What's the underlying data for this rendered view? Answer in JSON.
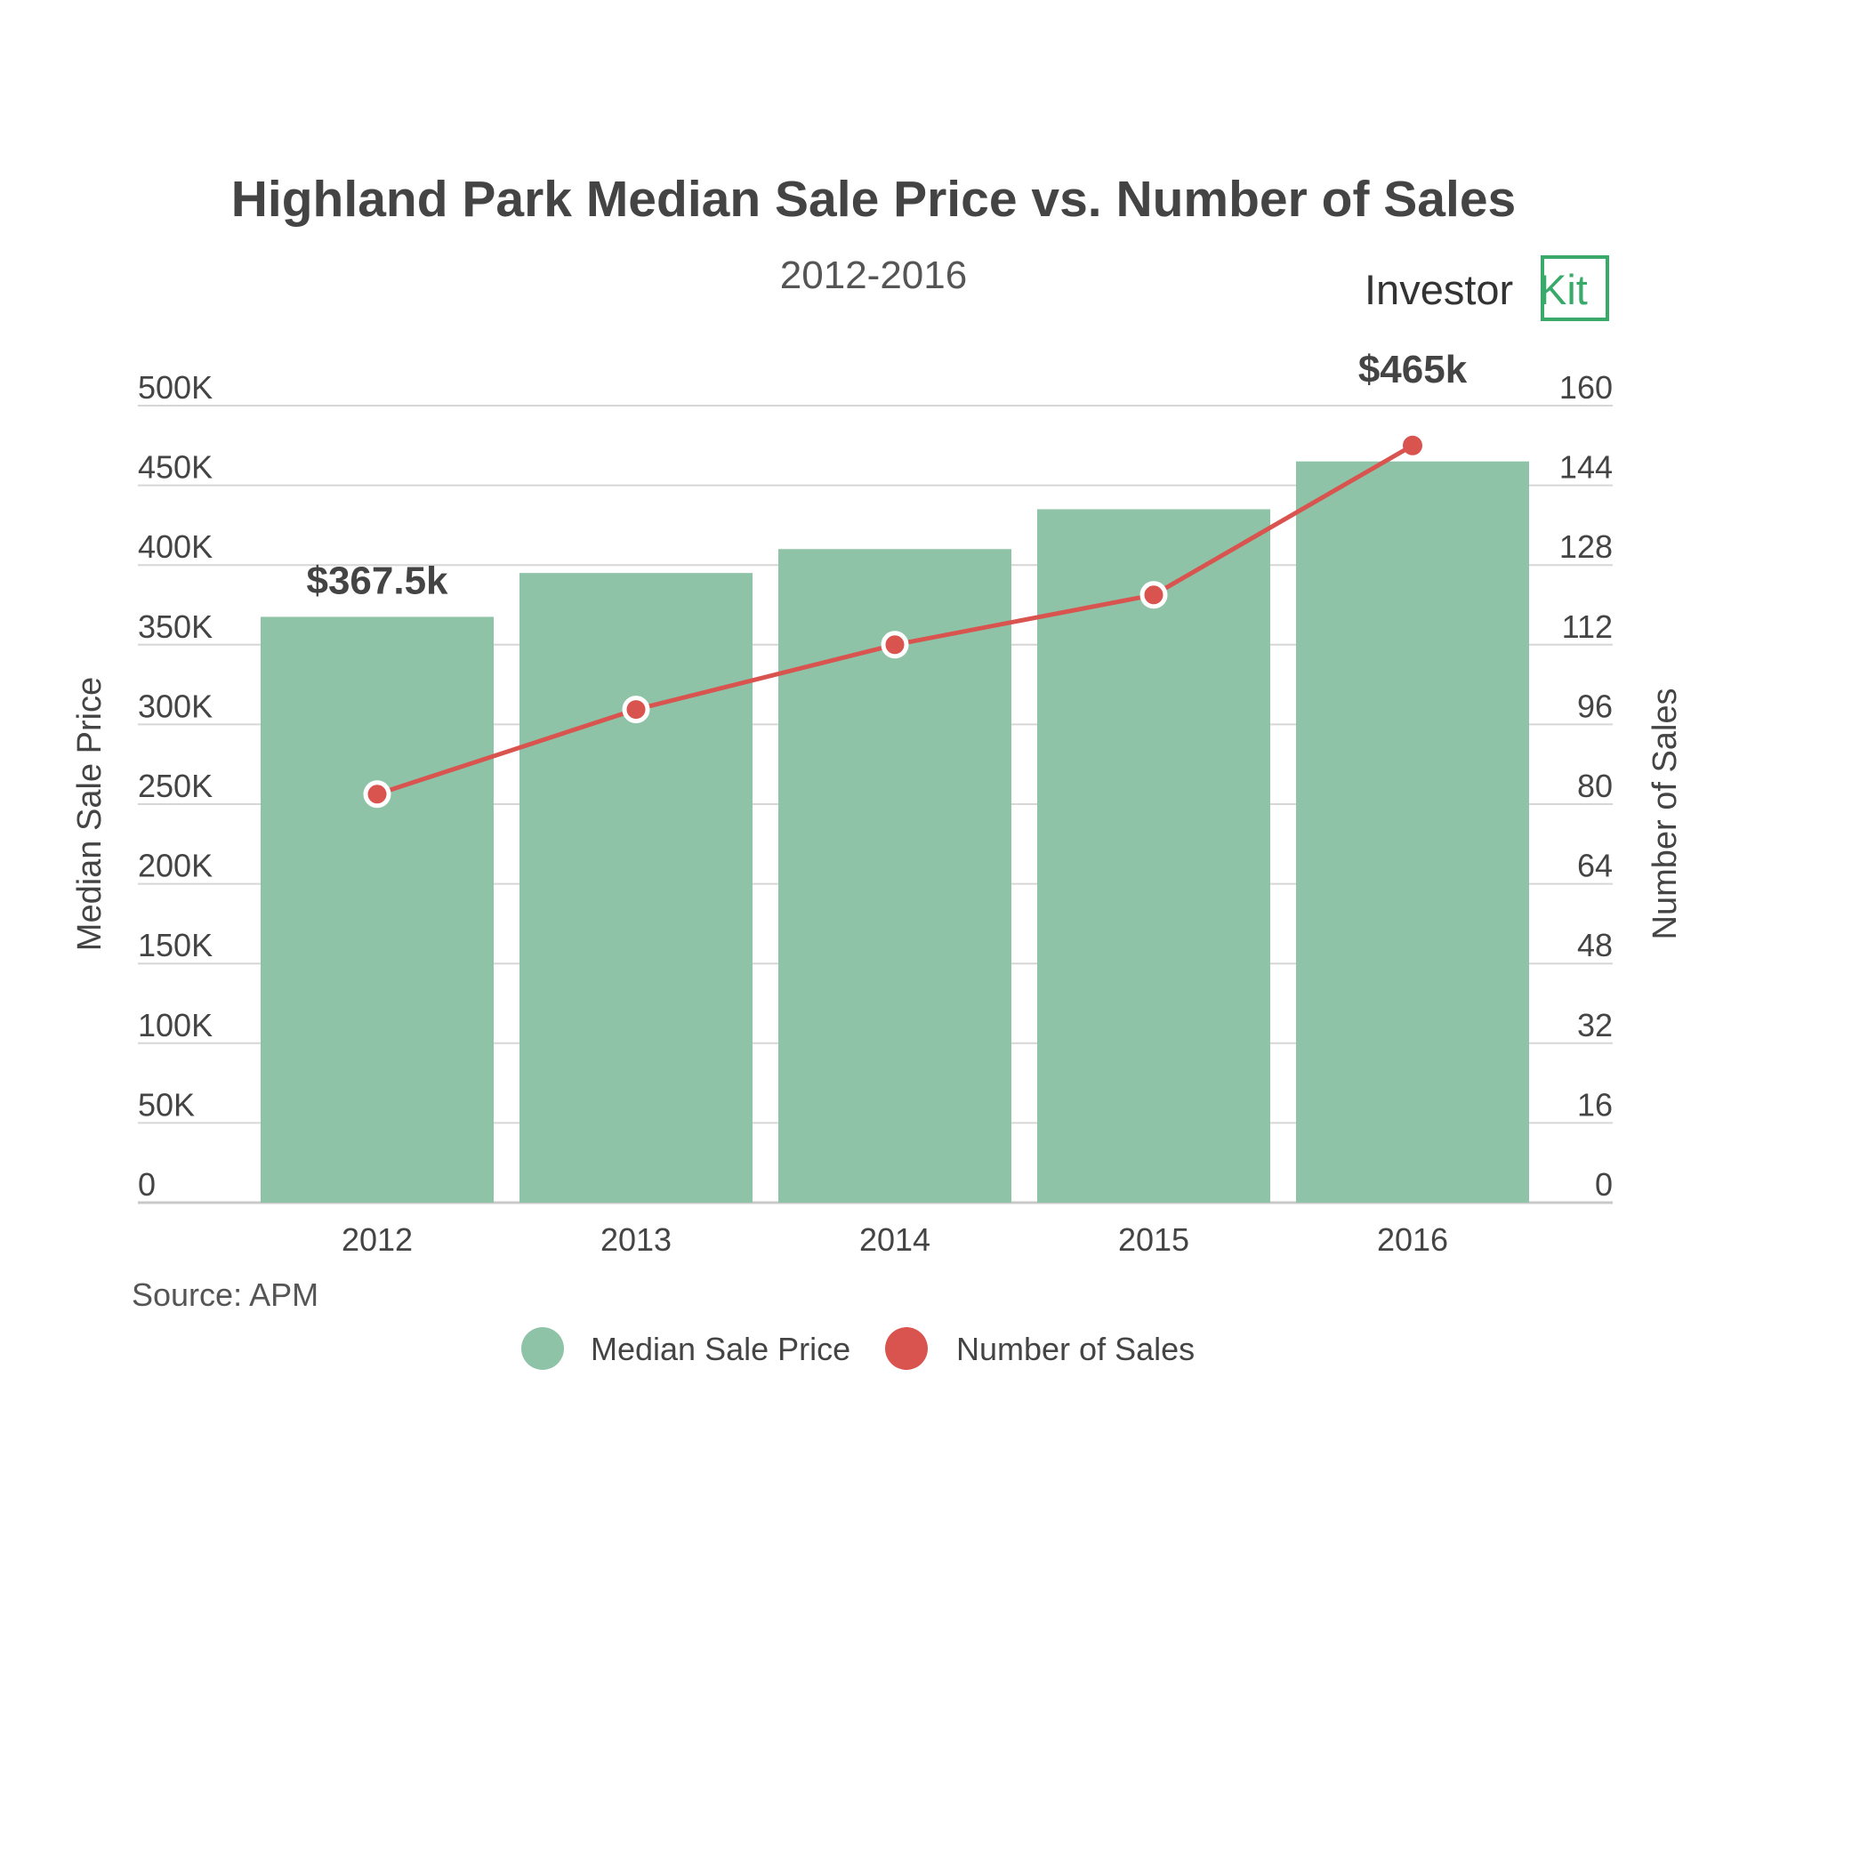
{
  "chart_data": {
    "type": "bar",
    "title": "Highland Park Median Sale Price vs. Number of Sales",
    "subtitle": "2012-2016",
    "categories": [
      "2012",
      "2013",
      "2014",
      "2015",
      "2016"
    ],
    "series": [
      {
        "name": "Median Sale Price",
        "type": "bar",
        "axis": "left",
        "color": "#8ec3a7",
        "values": [
          367500,
          395000,
          410000,
          435000,
          465000
        ]
      },
      {
        "name": "Number of Sales",
        "type": "line",
        "axis": "right",
        "color": "#d9534f",
        "values": [
          82,
          99,
          112,
          122,
          152
        ]
      }
    ],
    "ylabel": "Median Sale Price",
    "y2label": "Number of Sales",
    "ylim": [
      0,
      500000
    ],
    "y2lim": [
      0,
      160
    ],
    "yticks": [
      "0",
      "50K",
      "100K",
      "150K",
      "200K",
      "250K",
      "300K",
      "350K",
      "400K",
      "450K",
      "500K"
    ],
    "y2ticks": [
      "0",
      "16",
      "32",
      "48",
      "64",
      "80",
      "96",
      "112",
      "128",
      "144",
      "160"
    ],
    "annotations": [
      {
        "category": "2012",
        "text": "$367.5k"
      },
      {
        "category": "2016",
        "text": "$465k"
      }
    ],
    "legend": {
      "position": "bottom",
      "entries": [
        "Median Sale Price",
        "Number of Sales"
      ]
    },
    "grid": true,
    "source": "Source: APM"
  },
  "logo": {
    "text": "Investor Kit",
    "color": "#3aaa6a"
  }
}
